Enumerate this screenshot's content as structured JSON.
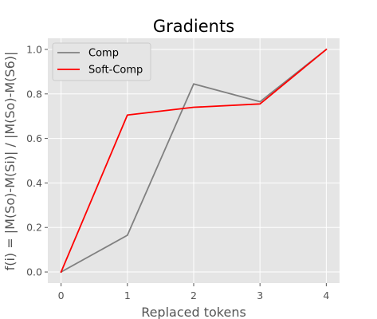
{
  "chart_data": {
    "type": "line",
    "title": "Gradients",
    "xlabel": "Replaced tokens",
    "ylabel": "f(i) = |M(So)-M(Si)| / |M(So)-M(S6)|",
    "xlim": [
      -0.2,
      4.2
    ],
    "ylim": [
      -0.05,
      1.05
    ],
    "x": [
      0,
      1,
      2,
      3,
      4
    ],
    "xticks": [
      "0",
      "1",
      "2",
      "3",
      "4"
    ],
    "yticks": [
      {
        "value": 0.0,
        "label": "0.0"
      },
      {
        "value": 0.2,
        "label": "0.2"
      },
      {
        "value": 0.4,
        "label": "0.4"
      },
      {
        "value": 0.6,
        "label": "0.6"
      },
      {
        "value": 0.8,
        "label": "0.8"
      },
      {
        "value": 1.0,
        "label": "1.0"
      }
    ],
    "grid": true,
    "legend": "top-left",
    "series": [
      {
        "name": "Comp",
        "color": "#808080",
        "values": [
          0.0,
          0.165,
          0.845,
          0.765,
          1.0
        ]
      },
      {
        "name": "Soft-Comp",
        "color": "#ff0000",
        "values": [
          0.0,
          0.705,
          0.74,
          0.755,
          1.0
        ]
      }
    ],
    "background_color": "#e5e5e5",
    "grid_color": "#ffffff"
  }
}
